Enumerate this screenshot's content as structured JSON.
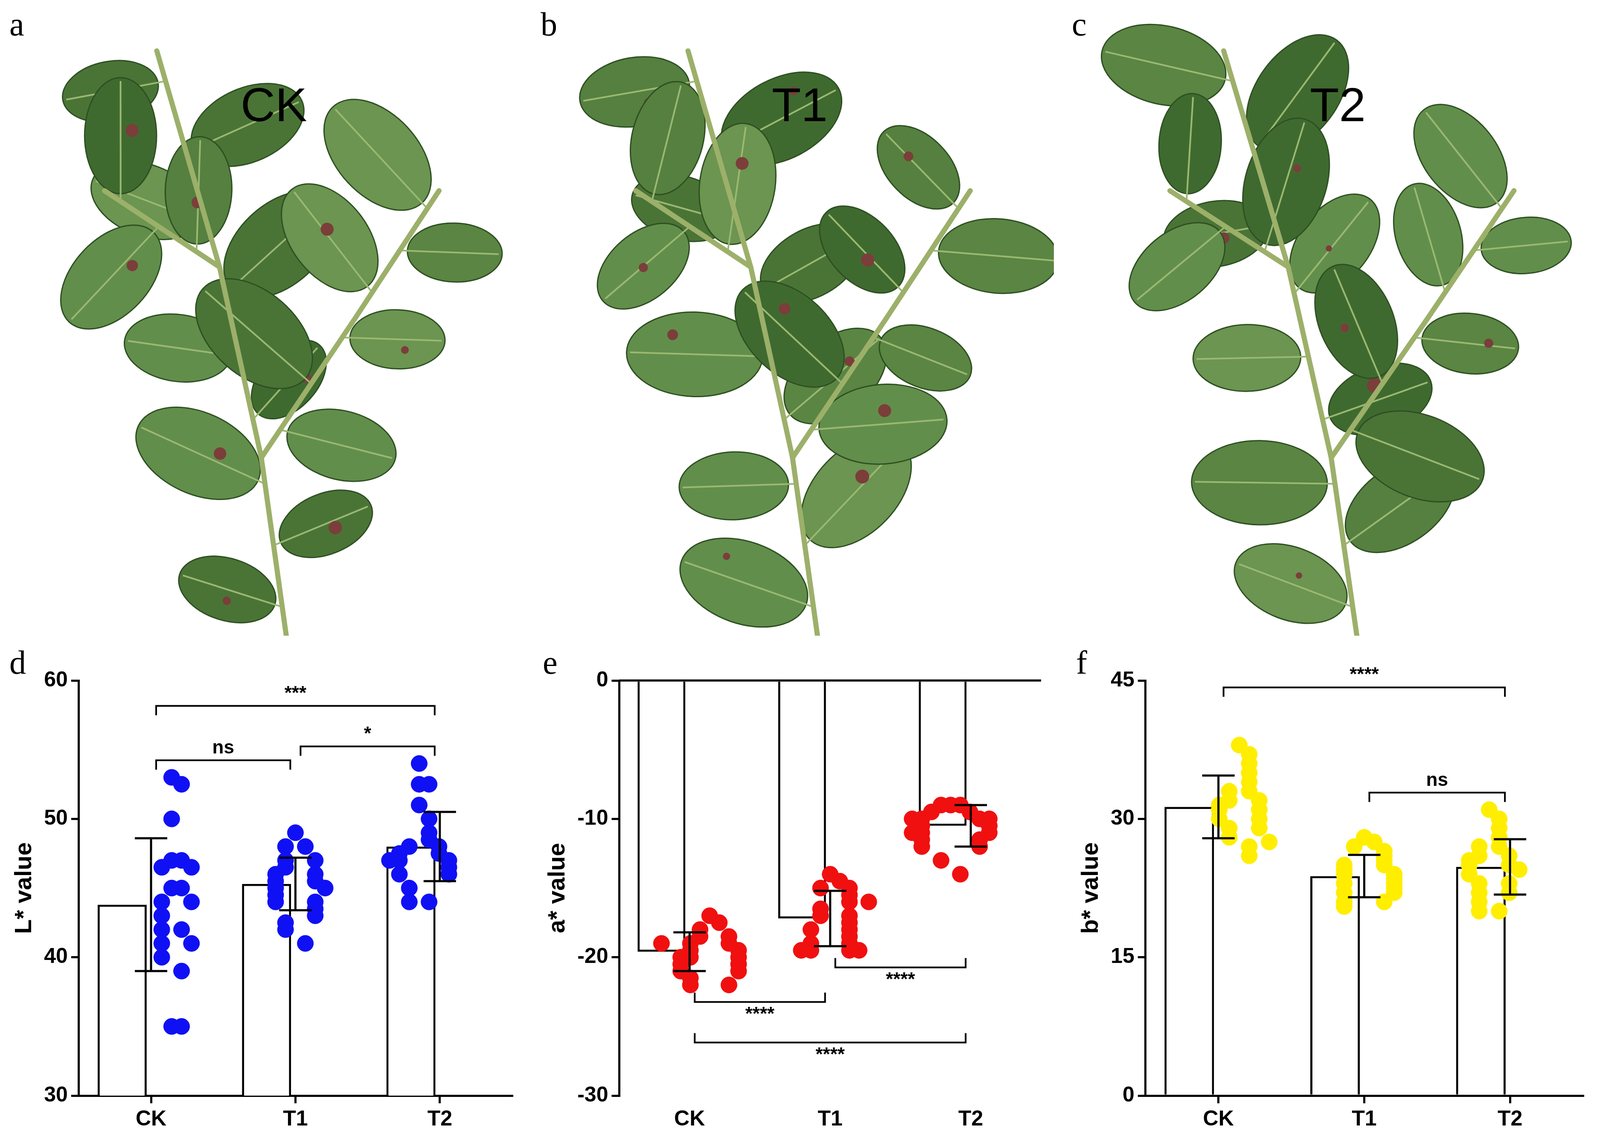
{
  "photos": [
    {
      "panel": "a",
      "label": "CK"
    },
    {
      "panel": "b",
      "label": "T1"
    },
    {
      "panel": "c",
      "label": "T2"
    }
  ],
  "chart_data": [
    {
      "type": "bar",
      "panel": "d",
      "y_label": "L* value",
      "categories": [
        "CK",
        "T1",
        "T2"
      ],
      "values": [
        43.8,
        45.3,
        48.0
      ],
      "error": [
        4.8,
        1.9,
        2.5
      ],
      "points": [
        [
          53,
          52.5,
          50,
          47,
          47,
          46.5,
          46.5,
          45,
          45,
          44,
          44,
          43,
          42,
          42,
          41,
          41,
          40,
          39,
          35,
          35
        ],
        [
          49,
          48,
          48,
          47,
          47,
          46.5,
          46,
          46,
          45.5,
          45.5,
          45,
          45,
          44.5,
          44,
          44,
          43.5,
          43,
          42.5,
          42,
          41
        ],
        [
          54,
          52.5,
          52.5,
          51,
          50,
          49,
          48.5,
          48,
          48,
          47.5,
          47.5,
          47,
          47,
          47,
          46.5,
          46,
          46,
          45,
          44,
          44
        ]
      ],
      "color": "#1010f5",
      "ylim": [
        30,
        60
      ],
      "yticks": [
        30,
        40,
        50,
        60
      ],
      "grid": false,
      "comparisons": [
        {
          "groups": [
            "CK",
            "T1"
          ],
          "label": "ns"
        },
        {
          "groups": [
            "T1",
            "T2"
          ],
          "label": "*"
        },
        {
          "groups": [
            "CK",
            "T2"
          ],
          "label": "***"
        }
      ]
    },
    {
      "type": "bar",
      "panel": "e",
      "y_label": "a* value",
      "categories": [
        "CK",
        "T1",
        "T2"
      ],
      "values": [
        -19.6,
        -17.2,
        -10.5
      ],
      "error": [
        1.4,
        2.0,
        1.5
      ],
      "points": [
        [
          -17,
          -17.5,
          -18,
          -18.5,
          -18.5,
          -19,
          -19,
          -19.5,
          -19.5,
          -20,
          -20,
          -20,
          -20.5,
          -20.5,
          -21,
          -21,
          -21.5,
          -22,
          -22,
          -19
        ],
        [
          -14,
          -14.5,
          -15,
          -15,
          -15.5,
          -16,
          -16.5,
          -17,
          -17,
          -17.5,
          -18,
          -18,
          -18.5,
          -19,
          -19,
          -19.5,
          -19.5,
          -19.5,
          -19.5,
          -16
        ],
        [
          -9,
          -9,
          -9,
          -9.5,
          -9.5,
          -10,
          -10,
          -10,
          -10,
          -10.5,
          -10.5,
          -11,
          -11,
          -11,
          -11.5,
          -11.5,
          -12,
          -12,
          -13,
          -14
        ]
      ],
      "color": "#f01010",
      "ylim": [
        -30,
        0
      ],
      "yticks": [
        -30,
        -20,
        -10,
        0
      ],
      "grid": false,
      "comparisons": [
        {
          "groups": [
            "CK",
            "T1"
          ],
          "label": "****"
        },
        {
          "groups": [
            "T1",
            "T2"
          ],
          "label": "****"
        },
        {
          "groups": [
            "CK",
            "T2"
          ],
          "label": "****"
        }
      ]
    },
    {
      "type": "bar",
      "panel": "f",
      "y_label": "b* value",
      "categories": [
        "CK",
        "T1",
        "T2"
      ],
      "values": [
        31.3,
        23.8,
        24.8
      ],
      "error": [
        3.4,
        2.3,
        3.0
      ],
      "points": [
        [
          38,
          37,
          36,
          35,
          34,
          33,
          33,
          32,
          32,
          31.5,
          31,
          31,
          30,
          30,
          29,
          29,
          28,
          27,
          26,
          27.5
        ],
        [
          28,
          27.5,
          27,
          26.5,
          26,
          25.5,
          25,
          25,
          24.5,
          24,
          24,
          23.5,
          23,
          23,
          22.5,
          22,
          22,
          21,
          21,
          20.5
        ],
        [
          31,
          30,
          29,
          28,
          27,
          27,
          26,
          26,
          25.5,
          25,
          25,
          24.5,
          24,
          23,
          23,
          22,
          22,
          21,
          20,
          20
        ]
      ],
      "color": "#ffee00",
      "ylim": [
        0,
        45
      ],
      "yticks": [
        0,
        15,
        30,
        45
      ],
      "grid": false,
      "comparisons": [
        {
          "groups": [
            "CK",
            "T2"
          ],
          "label": "****"
        },
        {
          "groups": [
            "T1",
            "T2"
          ],
          "label": "ns"
        }
      ]
    }
  ]
}
